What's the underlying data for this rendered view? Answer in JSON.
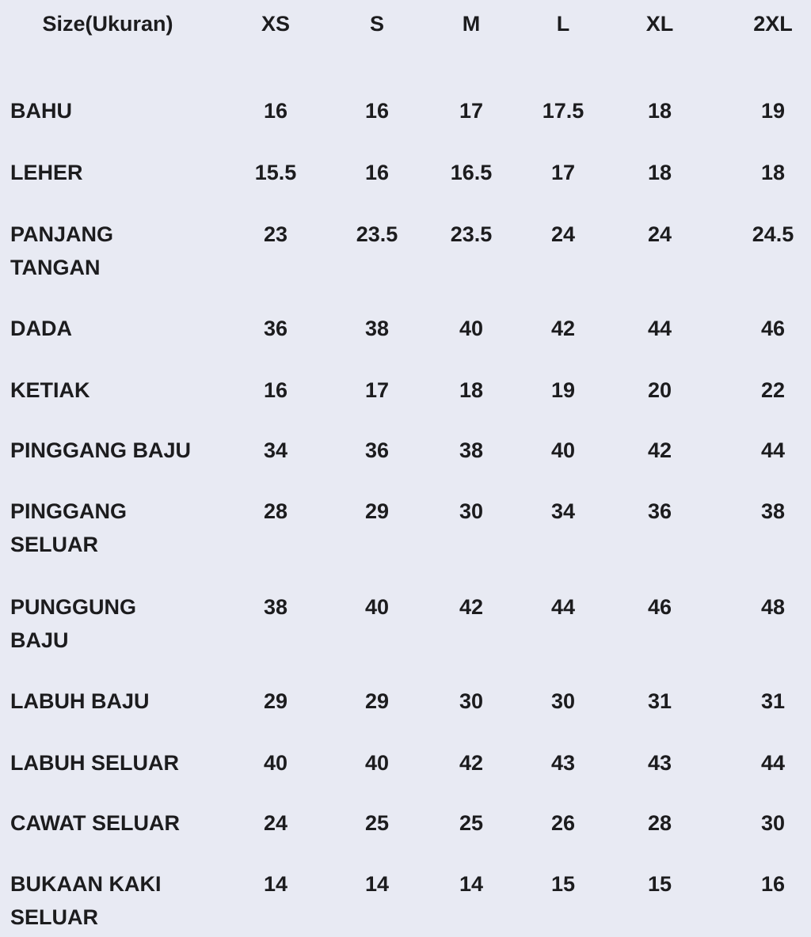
{
  "header": {
    "label": "Size(Ukuran)",
    "sizes": [
      "XS",
      "S",
      "M",
      "L",
      "XL",
      "2XL"
    ]
  },
  "rows": [
    {
      "label": "BAHU",
      "values": [
        "16",
        "16",
        "17",
        "17.5",
        "18",
        "19"
      ]
    },
    {
      "label": "LEHER",
      "values": [
        "15.5",
        "16",
        "16.5",
        "17",
        "18",
        "18"
      ]
    },
    {
      "label": "PANJANG TANGAN",
      "values": [
        "23",
        "23.5",
        "23.5",
        "24",
        "24",
        "24.5"
      ]
    },
    {
      "label": "DADA",
      "values": [
        "36",
        "38",
        "40",
        "42",
        "44",
        "46"
      ]
    },
    {
      "label": "KETIAK",
      "values": [
        "16",
        "17",
        "18",
        "19",
        "20",
        "22"
      ]
    },
    {
      "label": "PINGGANG BAJU",
      "values": [
        "34",
        "36",
        "38",
        "40",
        "42",
        "44"
      ]
    },
    {
      "label": "PINGGANG SELUAR",
      "values": [
        "28",
        "29",
        "30",
        "34",
        "36",
        "38"
      ]
    },
    {
      "label": "PUNGGUNG BAJU",
      "values": [
        "38",
        "40",
        "42",
        "44",
        "46",
        "48"
      ]
    },
    {
      "label": "LABUH BAJU",
      "values": [
        "29",
        "29",
        "30",
        "30",
        "31",
        "31"
      ]
    },
    {
      "label": "LABUH SELUAR",
      "values": [
        "40",
        "40",
        "42",
        "43",
        "43",
        "44"
      ]
    },
    {
      "label": "CAWAT SELUAR",
      "values": [
        "24",
        "25",
        "25",
        "26",
        "28",
        "30"
      ]
    },
    {
      "label": "BUKAAN KAKI SELUAR",
      "values": [
        "14",
        "14",
        "14",
        "15",
        "15",
        "16"
      ]
    }
  ]
}
